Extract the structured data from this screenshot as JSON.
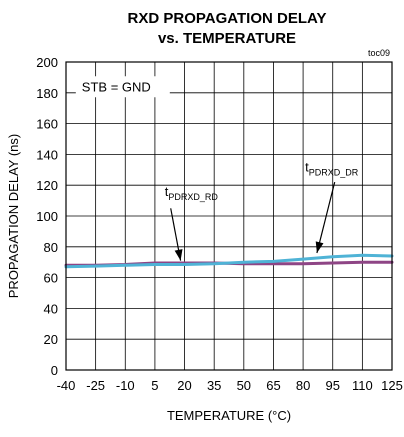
{
  "chart_data": {
    "type": "line",
    "title_line1": "RXD PROPAGATION DELAY",
    "title_line2": "vs. TEMPERATURE",
    "figure_id": "toc09",
    "xlabel": "TEMPERATURE (°C)",
    "ylabel": "PROPAGATION DELAY (ns)",
    "xlim": [
      -40,
      125
    ],
    "ylim": [
      0,
      200
    ],
    "x_ticks": [
      -40,
      -25,
      -10,
      5,
      20,
      35,
      50,
      65,
      80,
      95,
      110,
      125
    ],
    "y_ticks": [
      0,
      20,
      40,
      60,
      80,
      100,
      120,
      140,
      160,
      180,
      200
    ],
    "grid": true,
    "condition_text": "STB = GND",
    "colors": {
      "rd": "#8e4585",
      "dr": "#4fb3d6"
    },
    "series": [
      {
        "label_main": "t",
        "label_sub": "PDRXD_RD",
        "color": "rd",
        "x": [
          -40,
          -25,
          -10,
          5,
          20,
          35,
          50,
          65,
          80,
          95,
          110,
          125
        ],
        "y": [
          68,
          68,
          68.5,
          69.5,
          69.5,
          69.5,
          69,
          69,
          69,
          69.5,
          70,
          70
        ]
      },
      {
        "label_main": "t",
        "label_sub": "PDRXD_DR",
        "color": "dr",
        "x": [
          -40,
          -25,
          -10,
          5,
          20,
          35,
          50,
          65,
          80,
          95,
          110,
          125
        ],
        "y": [
          67,
          67.5,
          68,
          68.5,
          68.5,
          69,
          70,
          70.5,
          72,
          73.5,
          74.5,
          74
        ]
      }
    ],
    "annotations": [
      {
        "series_index": 0,
        "text_at": [
          10,
          113
        ],
        "arrow_from": [
          13,
          105
        ],
        "arrow_to": [
          18,
          71
        ]
      },
      {
        "series_index": 1,
        "text_at": [
          81,
          129
        ],
        "arrow_from": [
          96,
          122
        ],
        "arrow_to": [
          87,
          76
        ]
      }
    ]
  }
}
